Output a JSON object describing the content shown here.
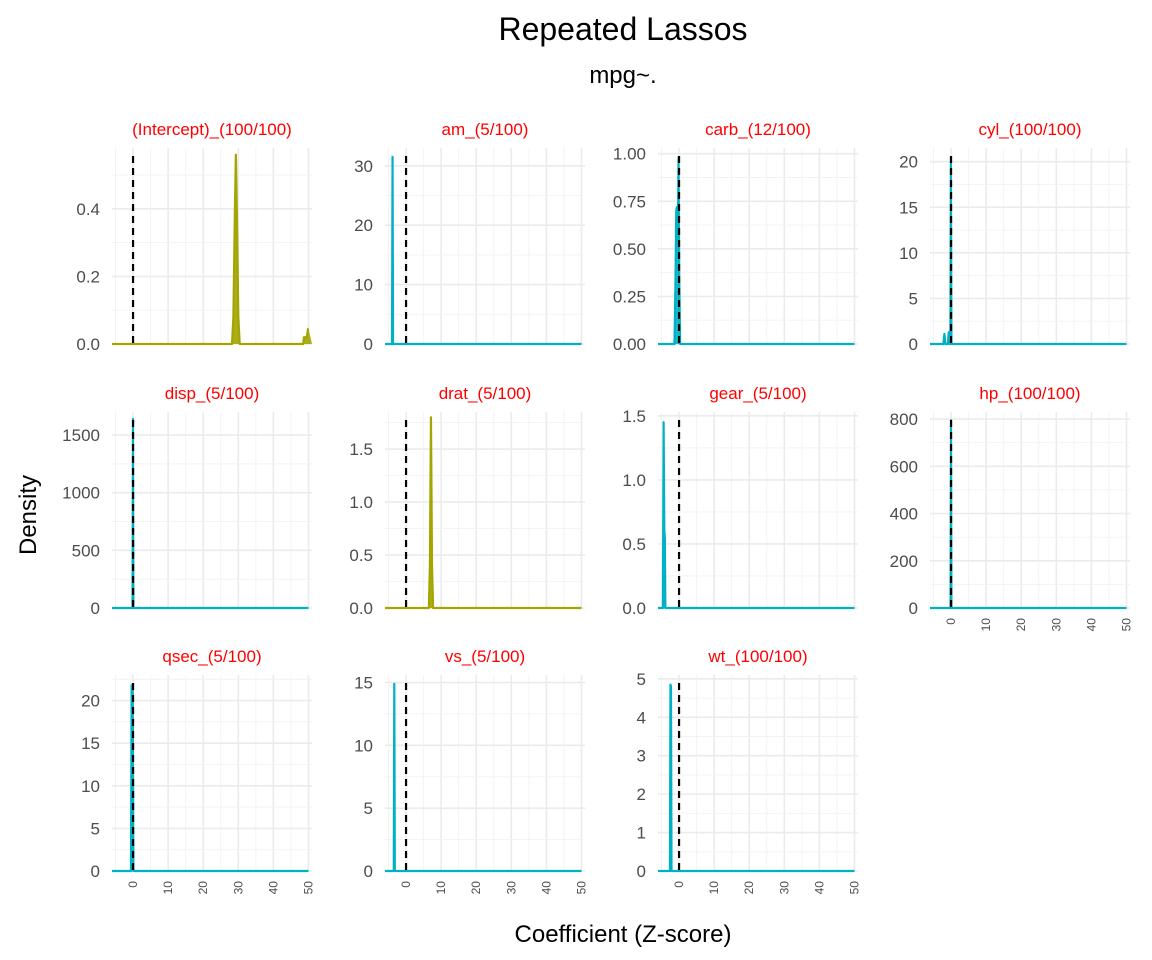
{
  "chart_data": {
    "type": "area",
    "title": "Repeated Lassos",
    "subtitle": "mpg~.",
    "xlabel": "Coefficient (Z-score)",
    "ylabel": "Density",
    "xlim": [
      -6,
      51
    ],
    "x_ticks": [
      0,
      10,
      20,
      30,
      40,
      50
    ],
    "reference_line": {
      "x": 0,
      "style": "dashed",
      "color": "#000000"
    },
    "grid": true,
    "legend": "none",
    "colors": {
      "olive": "#a3a500",
      "teal": "#00b0c5",
      "strip": "#ff0000"
    },
    "panels": [
      {
        "label": "(Intercept)_(100/100)",
        "color": "#a3a500",
        "ylim": [
          0,
          0.58
        ],
        "y_ticks": [
          "0.0",
          "0.2",
          "0.4"
        ],
        "y_tick_values": [
          0,
          0.2,
          0.4
        ],
        "points": [
          [
            -6,
            0
          ],
          [
            28.2,
            0
          ],
          [
            28.6,
            0.08
          ],
          [
            29.0,
            0.38
          ],
          [
            29.3,
            0.56
          ],
          [
            29.6,
            0.38
          ],
          [
            30.0,
            0.08
          ],
          [
            30.4,
            0
          ],
          [
            48.5,
            0
          ],
          [
            48.7,
            0.02
          ],
          [
            49.5,
            0.02
          ],
          [
            49.9,
            0.045
          ],
          [
            50,
            0.045
          ]
        ]
      },
      {
        "label": "am_(5/100)",
        "color": "#00b0c5",
        "ylim": [
          0,
          33
        ],
        "y_ticks": [
          "0",
          "10",
          "20",
          "30"
        ],
        "y_tick_values": [
          0,
          10,
          20,
          30
        ],
        "points": [
          [
            -6,
            0
          ],
          [
            -4.0,
            0
          ],
          [
            -3.85,
            31.5
          ],
          [
            -3.7,
            0
          ],
          [
            50,
            0
          ]
        ]
      },
      {
        "label": "carb_(12/100)",
        "color": "#00b0c5",
        "ylim": [
          0,
          1.03
        ],
        "y_ticks": [
          "0.00",
          "0.25",
          "0.50",
          "0.75",
          "1.00"
        ],
        "y_tick_values": [
          0,
          0.25,
          0.5,
          0.75,
          1.0
        ],
        "points": [
          [
            -6,
            0
          ],
          [
            -1.3,
            0
          ],
          [
            -1.0,
            0.35
          ],
          [
            -0.8,
            0.7
          ],
          [
            -0.6,
            0.72
          ],
          [
            -0.45,
            0.55
          ],
          [
            -0.3,
            0.65
          ],
          [
            -0.15,
            0.98
          ],
          [
            0.05,
            0.35
          ],
          [
            0.3,
            0
          ],
          [
            50,
            0
          ]
        ]
      },
      {
        "label": "cyl_(100/100)",
        "color": "#00b0c5",
        "ylim": [
          0,
          21.5
        ],
        "y_ticks": [
          "0",
          "5",
          "10",
          "15",
          "20"
        ],
        "y_tick_values": [
          0,
          5,
          10,
          15,
          20
        ],
        "points": [
          [
            -6,
            0
          ],
          [
            -2.2,
            0
          ],
          [
            -1.9,
            1.1
          ],
          [
            -1.6,
            0
          ],
          [
            -0.9,
            0
          ],
          [
            -0.65,
            1.3
          ],
          [
            -0.4,
            0
          ],
          [
            -0.2,
            0
          ],
          [
            -0.05,
            20.5
          ],
          [
            0.1,
            0
          ],
          [
            50,
            0
          ]
        ]
      },
      {
        "label": "disp_(5/100)",
        "color": "#00b0c5",
        "ylim": [
          0,
          1700
        ],
        "y_ticks": [
          "0",
          "500",
          "1000",
          "1500"
        ],
        "y_tick_values": [
          0,
          500,
          1000,
          1500
        ],
        "points": [
          [
            -6,
            0
          ],
          [
            -0.15,
            0
          ],
          [
            -0.02,
            1640
          ],
          [
            0.1,
            0
          ],
          [
            50,
            0
          ]
        ]
      },
      {
        "label": "drat_(5/100)",
        "color": "#a3a500",
        "ylim": [
          0,
          1.85
        ],
        "y_ticks": [
          "0.0",
          "0.5",
          "1.0",
          "1.5"
        ],
        "y_tick_values": [
          0,
          0.5,
          1.0,
          1.5
        ],
        "points": [
          [
            -6,
            0
          ],
          [
            6.5,
            0
          ],
          [
            6.8,
            0.4
          ],
          [
            7.1,
            1.8
          ],
          [
            7.4,
            0.4
          ],
          [
            7.7,
            0
          ],
          [
            50,
            0
          ]
        ]
      },
      {
        "label": "gear_(5/100)",
        "color": "#00b0c5",
        "ylim": [
          0,
          1.53
        ],
        "y_ticks": [
          "0.0",
          "0.5",
          "1.0",
          "1.5"
        ],
        "y_tick_values": [
          0,
          0.5,
          1.0,
          1.5
        ],
        "points": [
          [
            -6,
            0
          ],
          [
            -4.6,
            0
          ],
          [
            -4.4,
            1.45
          ],
          [
            -4.2,
            0.6
          ],
          [
            -4.05,
            0.55
          ],
          [
            -3.9,
            0
          ],
          [
            50,
            0
          ]
        ]
      },
      {
        "label": "hp_(100/100)",
        "color": "#00b0c5",
        "ylim": [
          0,
          830
        ],
        "y_ticks": [
          "0",
          "200",
          "400",
          "600",
          "800"
        ],
        "y_tick_values": [
          0,
          200,
          400,
          600,
          800
        ],
        "points": [
          [
            -6,
            0
          ],
          [
            -0.15,
            0
          ],
          [
            -0.02,
            795
          ],
          [
            0.1,
            0
          ],
          [
            50,
            0
          ]
        ]
      },
      {
        "label": "qsec_(5/100)",
        "color": "#00b0c5",
        "ylim": [
          0,
          23
        ],
        "y_ticks": [
          "0",
          "5",
          "10",
          "15",
          "20"
        ],
        "y_tick_values": [
          0,
          5,
          10,
          15,
          20
        ],
        "points": [
          [
            -6,
            0
          ],
          [
            -0.6,
            0
          ],
          [
            -0.4,
            21.8
          ],
          [
            -0.1,
            21.5
          ],
          [
            0.1,
            0
          ],
          [
            50,
            0
          ]
        ]
      },
      {
        "label": "vs_(5/100)",
        "color": "#00b0c5",
        "ylim": [
          0,
          15.6
        ],
        "y_ticks": [
          "0",
          "5",
          "10",
          "15"
        ],
        "y_tick_values": [
          0,
          5,
          10,
          15
        ],
        "points": [
          [
            -6,
            0
          ],
          [
            -3.5,
            0
          ],
          [
            -3.35,
            14.9
          ],
          [
            -3.2,
            0
          ],
          [
            50,
            0
          ]
        ]
      },
      {
        "label": "wt_(100/100)",
        "color": "#00b0c5",
        "ylim": [
          0,
          5.1
        ],
        "y_ticks": [
          "0",
          "1",
          "2",
          "3",
          "4",
          "5"
        ],
        "y_tick_values": [
          0,
          1,
          2,
          3,
          4,
          5
        ],
        "points": [
          [
            -6,
            0
          ],
          [
            -2.6,
            0
          ],
          [
            -2.45,
            4.85
          ],
          [
            -2.3,
            4.8
          ],
          [
            -2.15,
            0
          ],
          [
            50,
            0
          ]
        ]
      }
    ]
  }
}
